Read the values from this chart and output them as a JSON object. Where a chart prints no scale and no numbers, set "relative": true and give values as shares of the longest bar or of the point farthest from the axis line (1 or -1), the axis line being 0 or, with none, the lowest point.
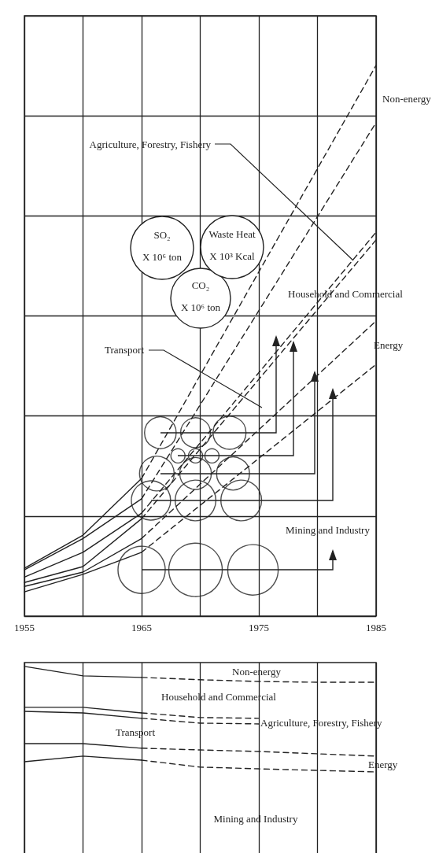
{
  "chart_data": [
    {
      "type": "line",
      "relative": true,
      "xlim": [
        1955,
        1985
      ],
      "xticks": [
        1955,
        {
          "value": 1960,
          "label": null
        },
        1965,
        {
          "value": 1970,
          "label": null
        },
        1975,
        {
          "value": 1980,
          "label": null
        },
        1985
      ],
      "grid": true,
      "tick_labels": "x",
      "annotations": [
        "SO₂",
        "X 10⁶ ton",
        "CO₂",
        "X 10⁶ ton",
        "Waste Heat",
        "X 10³ Kcal",
        "Non-energy",
        "Agriculture, Forestry, Fishery",
        "Household and Commercial",
        "Transport",
        "Energy",
        "Mining and Industry"
      ],
      "series": [
        {
          "x": [
            1955,
            1960,
            1965
          ],
          "values": [
            0.087,
            0.147,
            0.25
          ],
          "color": "#222222",
          "line_style": "solid"
        },
        {
          "x": [
            1965,
            1985
          ],
          "values": [
            0.25,
            1.0
          ],
          "color": "#222222",
          "line_style": "dashed"
        },
        {
          "x": [
            1955,
            1960,
            1965
          ],
          "values": [
            0.084,
            0.141,
            0.213
          ],
          "color": "#222222",
          "line_style": "solid"
        },
        {
          "x": [
            1965,
            1985
          ],
          "values": [
            0.213,
            0.896
          ],
          "color": "#222222",
          "line_style": "dashed"
        },
        {
          "x": [
            1955,
            1960,
            1965
          ],
          "values": [
            0.071,
            0.116,
            0.187
          ],
          "color": "#222222",
          "line_style": "solid"
        },
        {
          "x": [
            1965,
            1985
          ],
          "values": [
            0.187,
            0.697
          ],
          "color": "#222222",
          "line_style": "dashed"
        },
        {
          "x": [
            1955,
            1960,
            1965
          ],
          "values": [
            0.061,
            0.09,
            0.177
          ],
          "color": "#222222",
          "line_style": "solid"
        },
        {
          "x": [
            1965,
            1985
          ],
          "values": [
            0.177,
            0.683
          ],
          "color": "#222222",
          "line_style": "dashed"
        },
        {
          "x": [
            1955,
            1960,
            1965
          ],
          "values": [
            0.054,
            0.08,
            0.141
          ],
          "color": "#222222",
          "line_style": "solid"
        },
        {
          "x": [
            1965,
            1985
          ],
          "values": [
            0.141,
            0.536
          ],
          "color": "#222222",
          "line_style": "dashed"
        },
        {
          "x": [
            1955,
            1960,
            1965
          ],
          "values": [
            0.044,
            0.076,
            0.116
          ],
          "color": "#222222",
          "line_style": "solid"
        },
        {
          "x": [
            1965,
            1985
          ],
          "values": [
            0.116,
            0.457
          ],
          "color": "#222222",
          "line_style": "dashed"
        },
        {
          "type": "bubble",
          "x": [
            1966.6,
            1969.6,
            1972.5
          ],
          "values": [
            0.333,
            0.333,
            0.333
          ],
          "sizes": [
            0.35,
            0.31,
            0.38
          ],
          "color": "#222222"
        },
        {
          "type": "bubble",
          "x": [
            1968.1,
            1969.6,
            1971.0
          ],
          "values": [
            0.291,
            0.291,
            0.291
          ],
          "sizes": [
            0.07,
            0.07,
            0.07
          ],
          "color": "#222222"
        },
        {
          "type": "bubble",
          "x": [
            1966.3,
            1969.6,
            1972.8
          ],
          "values": [
            0.259,
            0.259,
            0.259
          ],
          "sizes": [
            0.42,
            0.35,
            0.38
          ],
          "color": "#222222"
        },
        {
          "type": "bubble",
          "x": [
            1965.8,
            1969.6,
            1973.5
          ],
          "values": [
            0.21,
            0.21,
            0.21
          ],
          "sizes": [
            0.54,
            0.58,
            0.58
          ],
          "color": "#222222"
        },
        {
          "type": "bubble",
          "x": [
            1965.0,
            1969.6,
            1974.5
          ],
          "values": [
            0.084,
            0.084,
            0.084
          ],
          "sizes": [
            0.78,
            1.0,
            0.89
          ],
          "color": "#222222"
        }
      ]
    },
    {
      "type": "line",
      "relative": true,
      "xlim": [
        1955,
        1985
      ],
      "xticks": [
        1955,
        1960,
        1965,
        1970,
        1975,
        1980,
        1985
      ],
      "grid": "x",
      "tick_labels": false,
      "annotations": [
        "Non-energy",
        "Household and Commercial",
        "Agriculture, Forestry, Fishery",
        "Transport",
        "Energy",
        "Mining and Industry"
      ],
      "series": [
        {
          "x": [
            1955,
            1960,
            1965
          ],
          "values": [
            1.0,
            0.951,
            0.943
          ],
          "color": "#222222",
          "line_style": "solid"
        },
        {
          "x": [
            1965,
            1970,
            1975,
            1980,
            1985
          ],
          "values": [
            0.943,
            0.931,
            0.922,
            0.918,
            0.918
          ],
          "color": "#222222",
          "line_style": "dashed"
        },
        {
          "x": [
            1955,
            1960,
            1965
          ],
          "values": [
            0.788,
            0.788,
            0.759
          ],
          "color": "#222222",
          "line_style": "solid"
        },
        {
          "x": [
            1965,
            1970,
            1975
          ],
          "values": [
            0.759,
            0.735,
            0.731
          ],
          "color": "#222222",
          "line_style": "dashed"
        },
        {
          "x": [
            1955,
            1960,
            1965
          ],
          "values": [
            0.767,
            0.759,
            0.731
          ],
          "color": "#222222",
          "line_style": "solid"
        },
        {
          "x": [
            1965,
            1970,
            1975
          ],
          "values": [
            0.731,
            0.706,
            0.702
          ],
          "color": "#222222",
          "line_style": "dashed"
        },
        {
          "x": [
            1955,
            1960,
            1965
          ],
          "values": [
            0.6,
            0.6,
            0.576
          ],
          "color": "#222222",
          "line_style": "solid"
        },
        {
          "x": [
            1965,
            1970,
            1975,
            1980,
            1985
          ],
          "values": [
            0.576,
            0.567,
            0.559,
            0.547,
            0.535
          ],
          "color": "#222222",
          "line_style": "dashed"
        },
        {
          "x": [
            1955,
            1960,
            1965
          ],
          "values": [
            0.506,
            0.535,
            0.514
          ],
          "color": "#222222",
          "line_style": "solid"
        },
        {
          "x": [
            1965,
            1970,
            1975,
            1980,
            1985
          ],
          "values": [
            0.514,
            0.478,
            0.469,
            0.461,
            0.453
          ],
          "color": "#222222",
          "line_style": "dashed"
        }
      ]
    }
  ]
}
